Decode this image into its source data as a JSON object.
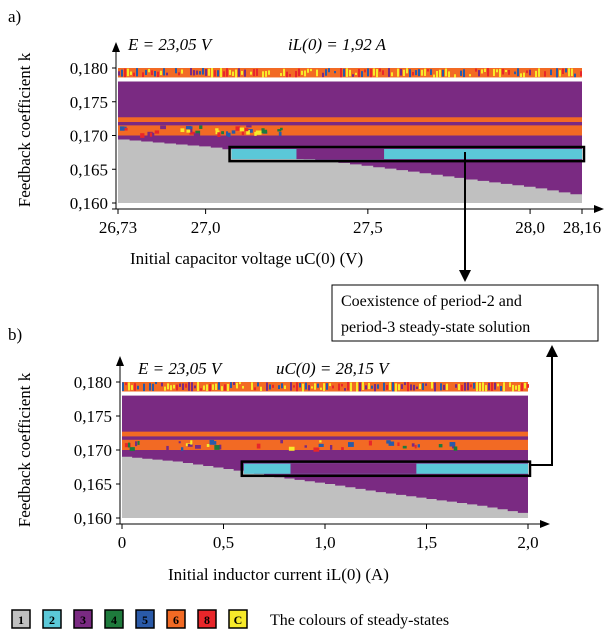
{
  "colors": {
    "1": "#c0c0c0",
    "2": "#5bc8d8",
    "3": "#7a2a82",
    "4": "#1e7a3c",
    "5": "#2a5aa8",
    "6": "#f26a24",
    "8": "#e8262a",
    "C": "#f7ea2a"
  },
  "legend": {
    "items": [
      "1",
      "2",
      "3",
      "4",
      "5",
      "6",
      "8",
      "C"
    ],
    "caption": "The colours of steady-states"
  },
  "callout": {
    "line1": "Coexistence of period-2 and",
    "line2": "period-3 steady-state solution"
  },
  "chart_data": [
    {
      "type": "heatmap",
      "panel_label": "a)",
      "param_E": "E = 23,05 V",
      "param_fixed": "iL(0) = 1,92 A",
      "ylabel": "Feedback coefficient k",
      "xlabel": "Initial capacitor voltage uC(0) (V)",
      "xlim": [
        26.73,
        28.16
      ],
      "ylim": [
        0.16,
        0.18
      ],
      "xticks": [
        26.73,
        27.0,
        27.5,
        28.0,
        28.16
      ],
      "xtick_labels": [
        "26,73",
        "27,0",
        "27,5",
        "28,0",
        "28,16"
      ],
      "yticks": [
        0.16,
        0.165,
        0.17,
        0.175,
        0.18
      ],
      "ytick_labels": [
        "0,160",
        "0,165",
        "0,170",
        "0,175",
        "0,180"
      ],
      "bands": [
        {
          "state": "3",
          "k": [
            0.1608,
            0.178
          ]
        },
        {
          "state": "6",
          "k": [
            0.17,
            0.1715
          ]
        },
        {
          "state": "6",
          "k": [
            0.172,
            0.1727
          ]
        },
        {
          "state": "6",
          "k": [
            0.1786,
            0.18
          ]
        }
      ],
      "region1_boundary": [
        [
          26.73,
          0.1694
        ],
        [
          27.0,
          0.1683
        ],
        [
          27.2,
          0.167
        ],
        [
          27.4,
          0.166
        ],
        [
          27.6,
          0.1648
        ],
        [
          27.8,
          0.1635
        ],
        [
          28.0,
          0.1623
        ],
        [
          28.16,
          0.161
        ]
      ],
      "coexistence": {
        "x": [
          27.08,
          28.16
        ],
        "k": [
          0.1665,
          0.168
        ],
        "period3_x": [
          27.28,
          27.55
        ]
      }
    },
    {
      "type": "heatmap",
      "panel_label": "b)",
      "param_E": "E = 23,05 V",
      "param_fixed": "uC(0) = 28,15 V",
      "ylabel": "Feedback coefficient k",
      "xlabel": "Initial inductor current iL(0) (A)",
      "xlim": [
        0,
        2.0
      ],
      "ylim": [
        0.16,
        0.18
      ],
      "xticks": [
        0,
        0.5,
        1.0,
        1.5,
        2.0
      ],
      "xtick_labels": [
        "0",
        "0,5",
        "1,0",
        "1,5",
        "2,0"
      ],
      "yticks": [
        0.16,
        0.165,
        0.17,
        0.175,
        0.18
      ],
      "ytick_labels": [
        "0,160",
        "0,165",
        "0,170",
        "0,175",
        "0,180"
      ],
      "bands": [
        {
          "state": "3",
          "k": [
            0.1604,
            0.178
          ]
        },
        {
          "state": "6",
          "k": [
            0.17,
            0.1715
          ]
        },
        {
          "state": "6",
          "k": [
            0.172,
            0.1727
          ]
        },
        {
          "state": "6",
          "k": [
            0.1786,
            0.18
          ]
        }
      ],
      "region1_boundary": [
        [
          0,
          0.169
        ],
        [
          0.25,
          0.1683
        ],
        [
          0.5,
          0.1672
        ],
        [
          0.75,
          0.166
        ],
        [
          1.0,
          0.165
        ],
        [
          1.25,
          0.1638
        ],
        [
          1.5,
          0.1628
        ],
        [
          1.75,
          0.1618
        ],
        [
          2.0,
          0.1605
        ]
      ],
      "coexistence": {
        "x": [
          0.6,
          2.0
        ],
        "k": [
          0.1665,
          0.168
        ],
        "period3_x": [
          0.83,
          1.45
        ]
      }
    }
  ]
}
